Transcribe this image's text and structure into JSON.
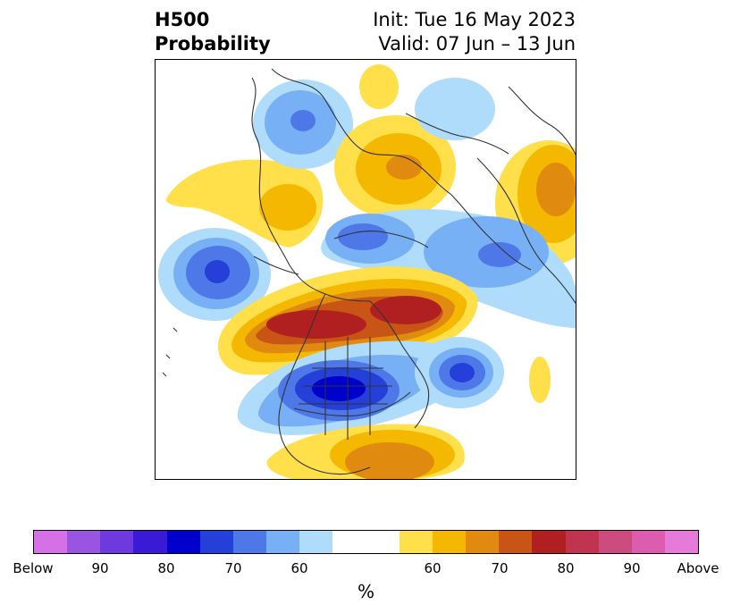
{
  "header": {
    "title_line1": "H500",
    "title_line2": "Probability",
    "init_label": "Init: Tue 16 May 2023",
    "valid_label": "Valid: 07 Jun – 13 Jun"
  },
  "colorbar": {
    "colors": [
      "#d670e6",
      "#9a55e0",
      "#6e3ae0",
      "#3a1ad4",
      "#0000cc",
      "#2440d8",
      "#4e78e8",
      "#77b0f4",
      "#aedcfa",
      "#ffffff",
      "#ffffff",
      "#ffe04a",
      "#f4b800",
      "#e08a10",
      "#c85416",
      "#b02020",
      "#c03450",
      "#cc4c80",
      "#dc5cb0",
      "#e67ad8"
    ],
    "tick_labels": [
      "Below",
      "90",
      "80",
      "70",
      "60",
      "60",
      "70",
      "80",
      "90",
      "Above"
    ],
    "unit_label": "%"
  },
  "map": {
    "anomaly_colors": {
      "light_blue": "#aedcfa",
      "mid_blue": "#77b0f4",
      "blue": "#4e78e8",
      "strong_blue": "#2440d8",
      "deep_blue": "#0000cc",
      "yellow": "#ffe04a",
      "gold": "#f4b800",
      "orange": "#e08a10",
      "dark_orange": "#c85416",
      "red": "#b02020"
    }
  }
}
